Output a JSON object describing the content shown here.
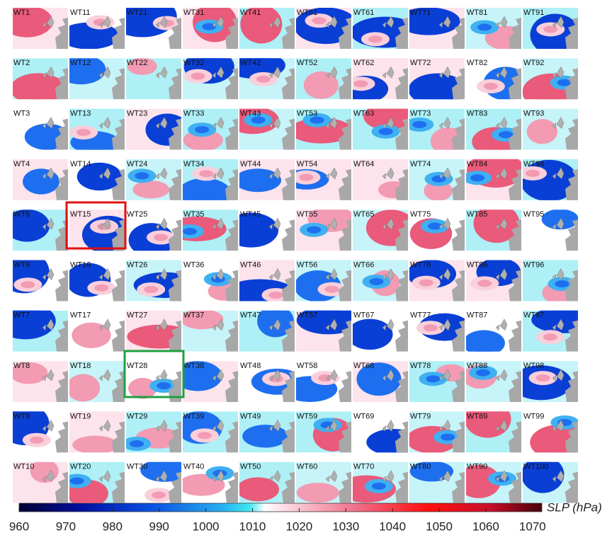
{
  "panels": [
    [
      "WT1",
      "WT11",
      "WT21",
      "WT31",
      "WT41",
      "WT51",
      "WT61",
      "WT71",
      "WT81",
      "WT91"
    ],
    [
      "WT2",
      "WT12",
      "WT22",
      "WT32",
      "WT42",
      "WT52",
      "WT62",
      "WT72",
      "WT82",
      "WT92"
    ],
    [
      "WT3",
      "WT13",
      "WT23",
      "WT33",
      "WT43",
      "WT53",
      "WT63",
      "WT73",
      "WT83",
      "WT93"
    ],
    [
      "WT4",
      "WT14",
      "WT24",
      "WT34",
      "WT44",
      "WT54",
      "WT64",
      "WT74",
      "WT84",
      "WT94"
    ],
    [
      "WT5",
      "WT15",
      "WT25",
      "WT35",
      "WT45",
      "WT55",
      "WT65",
      "WT75",
      "WT85",
      "WT95"
    ],
    [
      "WT6",
      "WT16",
      "WT26",
      "WT36",
      "WT46",
      "WT56",
      "WT66",
      "WT76",
      "WT86",
      "WT96"
    ],
    [
      "WT7",
      "WT17",
      "WT27",
      "WT37",
      "WT47",
      "WT57",
      "WT67",
      "WT77",
      "WT87",
      "WT97"
    ],
    [
      "WT8",
      "WT18",
      "WT28",
      "WT38",
      "WT48",
      "WT58",
      "WT68",
      "WT78",
      "WT88",
      "WT98"
    ],
    [
      "WT9",
      "WT19",
      "WT29",
      "WT39",
      "WT49",
      "WT59",
      "WT69",
      "WT79",
      "WT89",
      "WT99"
    ],
    [
      "WT10",
      "WT20",
      "WT30",
      "WT40",
      "WT50",
      "WT60",
      "WT70",
      "WT80",
      "WT90",
      "WT100"
    ]
  ],
  "colorbar": {
    "label": "SLP (hPa)",
    "lim": [
      960,
      1072
    ],
    "ticks": [
      960,
      970,
      980,
      990,
      1000,
      1010,
      1020,
      1030,
      1040,
      1050,
      1060,
      1070
    ]
  }
}
